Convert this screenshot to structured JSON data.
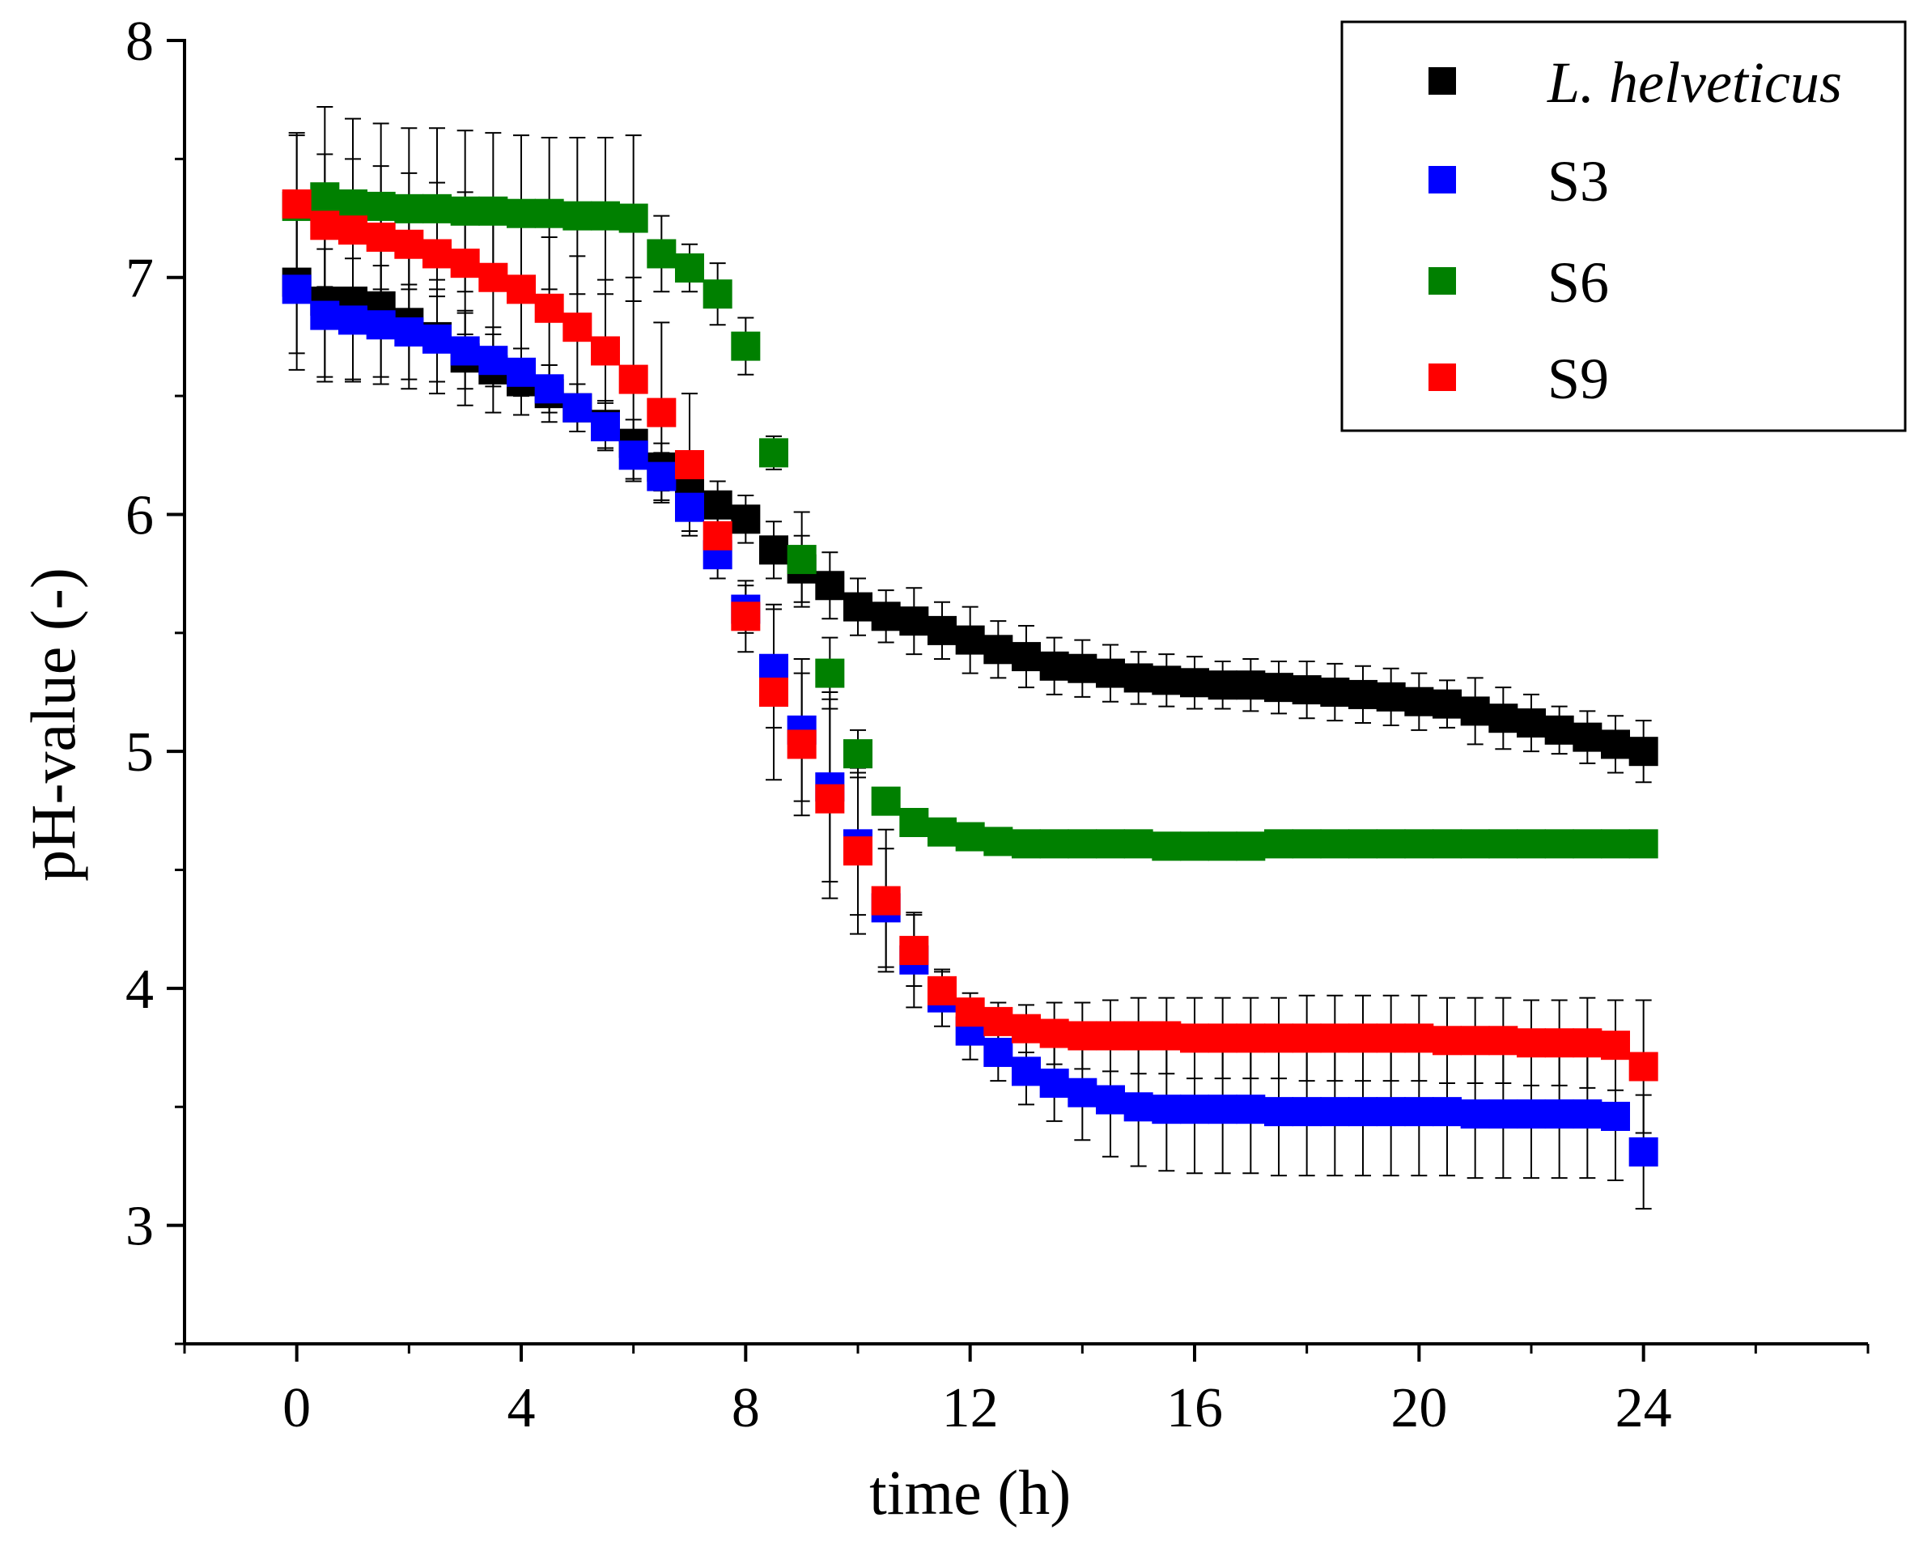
{
  "chart_data": {
    "type": "scatter",
    "title": "",
    "xlabel": "time (h)",
    "ylabel": "pH-value (-)",
    "xlim": [
      -2,
      28
    ],
    "ylim": [
      2.5,
      8
    ],
    "xticks": [
      0,
      4,
      8,
      12,
      16,
      20,
      24
    ],
    "xtick_labels": [
      "0",
      "4",
      "8",
      "12",
      "16",
      "20",
      "24"
    ],
    "yticks": [
      3,
      4,
      5,
      6,
      7,
      8
    ],
    "ytick_labels": [
      "3",
      "4",
      "5",
      "6",
      "7",
      "8"
    ],
    "grid": false,
    "legend_position": "top-right",
    "x": [
      0,
      0.5,
      1,
      1.5,
      2,
      2.5,
      3,
      3.5,
      4,
      4.5,
      5,
      5.5,
      6,
      6.5,
      7,
      7.5,
      8,
      8.5,
      9,
      9.5,
      10,
      10.5,
      11,
      11.5,
      12,
      12.5,
      13,
      13.5,
      14,
      14.5,
      15,
      15.5,
      16,
      16.5,
      17,
      17.5,
      18,
      18.5,
      19,
      19.5,
      20,
      20.5,
      21,
      21.5,
      22,
      22.5,
      23,
      23.5,
      24
    ],
    "series": [
      {
        "name": "L. helveticus",
        "italic": true,
        "color": "#000000",
        "values": [
          6.98,
          6.9,
          6.9,
          6.88,
          6.81,
          6.75,
          6.66,
          6.61,
          6.56,
          6.51,
          6.45,
          6.38,
          6.3,
          6.2,
          6.1,
          6.04,
          5.98,
          5.85,
          5.77,
          5.7,
          5.61,
          5.57,
          5.55,
          5.51,
          5.47,
          5.43,
          5.4,
          5.36,
          5.35,
          5.33,
          5.31,
          5.3,
          5.29,
          5.28,
          5.28,
          5.27,
          5.26,
          5.25,
          5.24,
          5.23,
          5.21,
          5.2,
          5.17,
          5.14,
          5.12,
          5.09,
          5.06,
          5.03,
          5.0
        ],
        "errors": [
          0.3,
          0.32,
          0.33,
          0.3,
          0.28,
          0.24,
          0.2,
          0.18,
          0.14,
          0.12,
          0.1,
          0.1,
          0.1,
          0.1,
          0.09,
          0.1,
          0.1,
          0.12,
          0.14,
          0.14,
          0.12,
          0.11,
          0.14,
          0.12,
          0.14,
          0.12,
          0.13,
          0.12,
          0.12,
          0.12,
          0.11,
          0.11,
          0.11,
          0.1,
          0.11,
          0.11,
          0.12,
          0.12,
          0.12,
          0.12,
          0.12,
          0.1,
          0.14,
          0.13,
          0.12,
          0.1,
          0.11,
          0.12,
          0.13
        ]
      },
      {
        "name": "S3",
        "italic": false,
        "color": "#0000ff",
        "values": [
          6.95,
          6.84,
          6.82,
          6.8,
          6.77,
          6.74,
          6.69,
          6.65,
          6.6,
          6.53,
          6.45,
          6.37,
          6.25,
          6.16,
          6.03,
          5.83,
          5.6,
          5.35,
          5.09,
          4.85,
          4.61,
          4.34,
          4.12,
          3.96,
          3.82,
          3.73,
          3.65,
          3.6,
          3.56,
          3.53,
          3.5,
          3.49,
          3.49,
          3.49,
          3.49,
          3.48,
          3.48,
          3.48,
          3.48,
          3.48,
          3.48,
          3.48,
          3.47,
          3.47,
          3.47,
          3.47,
          3.47,
          3.46,
          3.31
        ],
        "errors": [
          0.34,
          0.28,
          0.26,
          0.25,
          0.2,
          0.18,
          0.16,
          0.11,
          0.1,
          0.1,
          0.1,
          0.1,
          0.1,
          0.1,
          0.1,
          0.1,
          0.1,
          0.25,
          0.3,
          0.4,
          0.3,
          0.25,
          0.2,
          0.12,
          0.12,
          0.12,
          0.14,
          0.16,
          0.2,
          0.24,
          0.25,
          0.26,
          0.27,
          0.27,
          0.27,
          0.27,
          0.27,
          0.27,
          0.27,
          0.27,
          0.27,
          0.27,
          0.27,
          0.27,
          0.27,
          0.27,
          0.27,
          0.27,
          0.24
        ]
      },
      {
        "name": "S6",
        "italic": false,
        "color": "#008000",
        "values": [
          7.3,
          7.34,
          7.31,
          7.3,
          7.29,
          7.29,
          7.28,
          7.28,
          7.27,
          7.27,
          7.26,
          7.26,
          7.25,
          7.1,
          7.04,
          6.93,
          6.71,
          6.26,
          5.81,
          5.33,
          4.99,
          4.79,
          4.7,
          4.66,
          4.64,
          4.62,
          4.61,
          4.61,
          4.61,
          4.61,
          4.61,
          4.6,
          4.6,
          4.6,
          4.6,
          4.61,
          4.61,
          4.61,
          4.61,
          4.61,
          4.61,
          4.61,
          4.61,
          4.61,
          4.61,
          4.61,
          4.61,
          4.61,
          4.61
        ],
        "errors": [
          0.3,
          0.38,
          0.36,
          0.35,
          0.34,
          0.34,
          0.34,
          0.33,
          0.33,
          0.32,
          0.33,
          0.33,
          0.35,
          0.16,
          0.1,
          0.13,
          0.12,
          0.07,
          0.2,
          0.15,
          0.1,
          0.04,
          0.04,
          0.03,
          0.03,
          0.03,
          0.03,
          0.03,
          0.03,
          0.03,
          0.02,
          0.02,
          0.02,
          0.02,
          0.02,
          0.02,
          0.02,
          0.02,
          0.02,
          0.02,
          0.02,
          0.02,
          0.02,
          0.02,
          0.02,
          0.02,
          0.02,
          0.02,
          0.02
        ]
      },
      {
        "name": "S9",
        "italic": false,
        "color": "#ff0000",
        "values": [
          7.31,
          7.22,
          7.2,
          7.17,
          7.14,
          7.1,
          7.06,
          7.0,
          6.95,
          6.87,
          6.79,
          6.69,
          6.57,
          6.43,
          6.21,
          5.91,
          5.57,
          5.25,
          5.03,
          4.8,
          4.58,
          4.37,
          4.16,
          3.99,
          3.9,
          3.86,
          3.83,
          3.81,
          3.8,
          3.8,
          3.8,
          3.8,
          3.79,
          3.79,
          3.79,
          3.79,
          3.79,
          3.79,
          3.79,
          3.79,
          3.79,
          3.78,
          3.78,
          3.78,
          3.77,
          3.77,
          3.77,
          3.76,
          3.67
        ],
        "errors": [
          0.3,
          0.3,
          0.3,
          0.3,
          0.3,
          0.3,
          0.3,
          0.3,
          0.3,
          0.3,
          0.3,
          0.3,
          0.43,
          0.38,
          0.3,
          0.1,
          0.15,
          0.37,
          0.3,
          0.42,
          0.35,
          0.3,
          0.15,
          0.08,
          0.08,
          0.08,
          0.1,
          0.13,
          0.14,
          0.15,
          0.16,
          0.16,
          0.17,
          0.17,
          0.17,
          0.17,
          0.18,
          0.18,
          0.18,
          0.18,
          0.18,
          0.18,
          0.18,
          0.18,
          0.18,
          0.18,
          0.19,
          0.19,
          0.28
        ]
      }
    ]
  }
}
